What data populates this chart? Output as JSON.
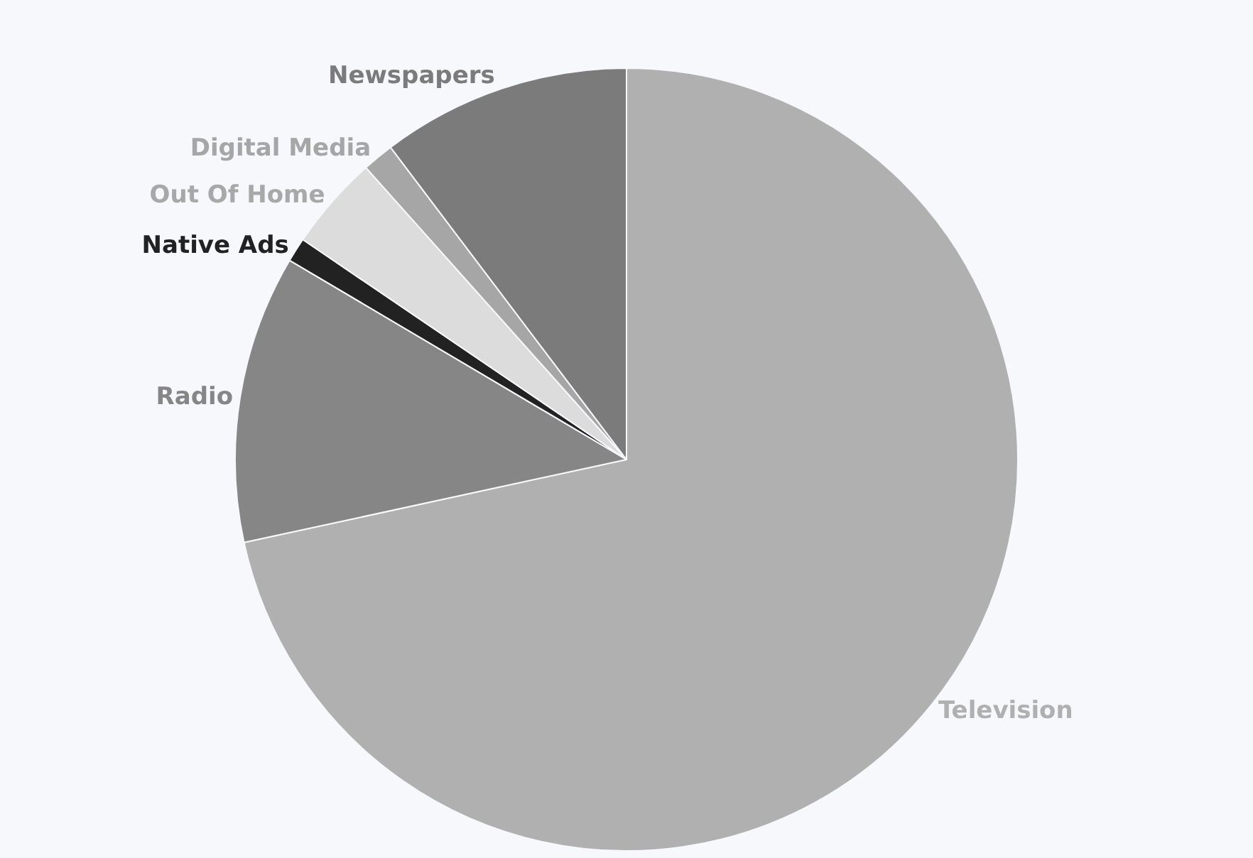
{
  "chart_data": {
    "type": "pie",
    "categories": [
      "Television",
      "Radio",
      "Native Ads",
      "Out Of Home",
      "Digital Media",
      "Newspapers"
    ],
    "values": [
      71.6,
      11.9,
      1.0,
      3.9,
      1.3,
      10.3
    ],
    "colors": [
      "#b0b0b0",
      "#868686",
      "#222222",
      "#dcdcdc",
      "#a6a6a6",
      "#7b7b7b"
    ],
    "legend": false
  }
}
